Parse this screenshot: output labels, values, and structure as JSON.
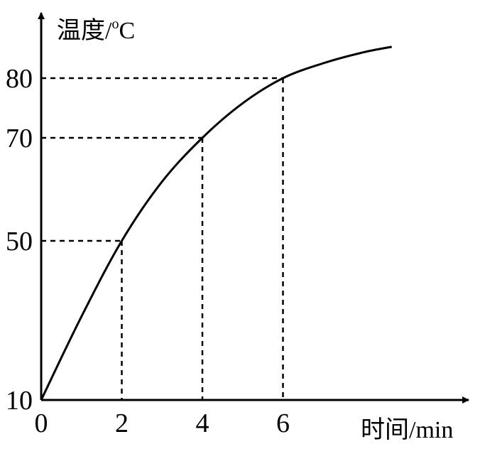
{
  "chart_data": {
    "type": "line",
    "title": "",
    "xlabel": "时间/min",
    "ylabel": "温度/°C",
    "xlabel_parts": [
      "时间",
      "/min"
    ],
    "ylabel_parts": [
      "温度",
      "/",
      "o",
      "C"
    ],
    "x_ticks": [
      "0",
      "2",
      "4",
      "6"
    ],
    "y_ticks": [
      "10",
      "50",
      "70",
      "80"
    ],
    "series": [
      {
        "x": [
          0,
          1,
          2,
          3,
          4,
          5,
          6,
          7,
          8,
          8.7
        ],
        "y": [
          10,
          31,
          50,
          61.5,
          70,
          75.8,
          80,
          83,
          85.2,
          86.3
        ]
      }
    ],
    "guides": [
      {
        "x": 2,
        "y": 50
      },
      {
        "x": 4,
        "y": 70
      },
      {
        "x": 6,
        "y": 80
      }
    ],
    "xlim": [
      0,
      9.8
    ],
    "grid": false,
    "legend": "none"
  }
}
